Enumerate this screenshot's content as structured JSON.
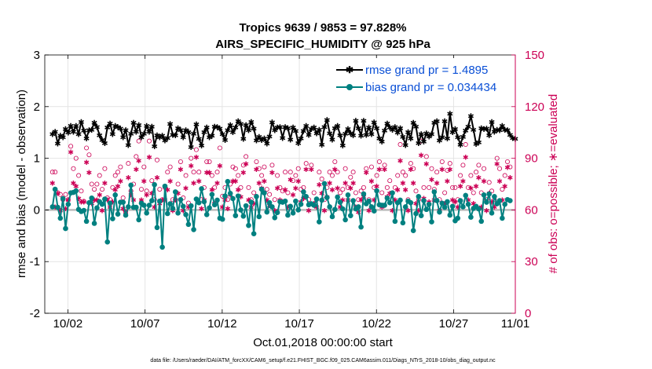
{
  "chart_data": {
    "type": "line",
    "title": "Tropics 9639 / 9853 = 97.828%",
    "subtitle": "AIRS_SPECIFIC_HUMIDITY @ 925 hPa",
    "xlabel": "Oct.01,2018 00:00:00 start",
    "ylabel": "rmse and bias (model - observation)",
    "y2label": "# of obs: o=possible; ∗=evaluated",
    "xlim": [
      0.5,
      31.0
    ],
    "ylim": [
      -2,
      3
    ],
    "y2lim": [
      0,
      150
    ],
    "x_ticks": [
      2,
      7,
      12,
      17,
      22,
      27,
      32
    ],
    "x_tick_labels": [
      "10/02",
      "10/07",
      "10/12",
      "10/17",
      "10/22",
      "10/27",
      "11/01"
    ],
    "y_ticks": [
      -2,
      -1,
      0,
      1,
      2,
      3
    ],
    "y_tick_labels": [
      "-2",
      "-1",
      "0",
      "1",
      "2",
      "3"
    ],
    "y2_ticks": [
      0,
      30,
      60,
      90,
      120,
      150
    ],
    "y2_tick_labels": [
      "0",
      "30",
      "60",
      "90",
      "120",
      "150"
    ],
    "legend_position": "top-right",
    "grid": true,
    "colors": {
      "rmse": "#000000",
      "bias": "#008080",
      "obs": "#cc0055",
      "zero_line": "#bbbbbb",
      "legend_text": "#0a4fd6"
    },
    "series": [
      {
        "name": "rmse grand pr = 1.4895",
        "values": [
          1.47,
          1.52,
          1.29,
          1.44,
          1.41,
          1.57,
          1.5,
          1.63,
          1.52,
          1.63,
          1.47,
          1.71,
          1.54,
          1.39,
          1.55,
          1.56,
          1.69,
          1.61,
          1.45,
          1.36,
          1.3,
          1.6,
          1.68,
          1.47,
          1.63,
          1.61,
          1.58,
          1.41,
          1.55,
          1.26,
          1.48,
          1.69,
          1.52,
          1.65,
          1.41,
          1.48,
          1.63,
          1.52,
          1.62,
          1.24,
          1.45,
          1.41,
          1.44,
          1.35,
          1.4,
          1.67,
          1.46,
          1.45,
          1.59,
          1.55,
          1.41,
          1.55,
          1.51,
          1.22,
          1.48,
          1.66,
          1.38,
          1.25,
          1.51,
          1.6,
          1.41,
          1.44,
          1.62,
          1.61,
          1.58,
          1.47,
          1.36,
          1.55,
          1.65,
          1.51,
          1.6,
          1.72,
          1.67,
          1.38,
          1.65,
          1.55,
          1.71,
          1.58,
          1.35,
          1.42,
          1.36,
          1.39,
          1.29,
          1.43,
          1.7,
          1.55,
          1.6,
          1.61,
          1.4,
          1.61,
          1.59,
          1.37,
          1.6,
          1.53,
          1.3,
          1.39,
          1.53,
          1.63,
          1.46,
          1.57,
          1.6,
          1.49,
          1.56,
          1.27,
          1.61,
          1.75,
          1.49,
          1.37,
          1.59,
          1.63,
          1.45,
          1.25,
          1.48,
          1.57,
          1.49,
          1.45,
          1.73,
          1.59,
          1.44,
          1.73,
          1.46,
          1.6,
          1.47,
          1.7,
          1.59,
          1.39,
          1.33,
          1.54,
          1.68,
          1.6,
          1.56,
          1.61,
          1.5,
          1.59,
          1.42,
          1.26,
          1.51,
          1.39,
          1.69,
          1.62,
          1.3,
          1.47,
          1.33,
          1.49,
          1.43,
          1.47,
          1.69,
          1.72,
          1.35,
          1.41,
          1.72,
          1.39,
          1.87,
          1.51,
          1.57,
          1.41,
          1.27,
          1.42,
          1.54,
          1.62,
          1.82,
          1.56,
          1.28,
          1.31,
          1.59,
          1.57,
          1.58,
          1.45,
          1.71,
          1.52,
          1.56,
          1.55,
          1.63,
          1.56,
          1.55,
          1.46,
          1.4,
          1.38
        ]
      },
      {
        "name": "bias grand pr = 0.034434",
        "values": [
          0.06,
          0.4,
          0.05,
          -0.16,
          0.22,
          -0.36,
          0.11,
          0.33,
          0.34,
          0.37,
          0.01,
          -0.03,
          -0.01,
          -0.22,
          0.14,
          0.23,
          -0.26,
          0.04,
          0.16,
          0.11,
          0.21,
          -0.62,
          0.13,
          -0.17,
          0.29,
          -0.08,
          0.15,
          0.15,
          -0.1,
          0.06,
          0.48,
          0.05,
          0.05,
          -0.19,
          0.13,
          0.09,
          -0.06,
          0.09,
          0.18,
          0.49,
          -0.34,
          0.17,
          -0.72,
          0.46,
          -0.07,
          0.12,
          0.03,
          0.35,
          -0.06,
          0.2,
          0.07,
          -0.09,
          -0.28,
          0.08,
          -0.38,
          0.21,
          0.14,
          0.41,
          0.16,
          -0.09,
          0.04,
          0.3,
          0.1,
          0.19,
          -0.16,
          -0.18,
          0.27,
          0.55,
          0.32,
          0.22,
          -0.11,
          0.27,
          0.0,
          -0.12,
          0.08,
          -0.3,
          0.15,
          -0.46,
          0.26,
          -0.13,
          0.4,
          0.33,
          -0.04,
          0.14,
          0.06,
          -0.15,
          -0.05,
          0.16,
          0.15,
          0.17,
          -0.1,
          0.07,
          -0.06,
          0.17,
          0.0,
          0.11,
          0.35,
          0.26,
          0.1,
          0.12,
          0.09,
          0.21,
          -0.23,
          0.19,
          0.51,
          0.24,
          0.06,
          -0.13,
          0.01,
          0.25,
          0.15,
          0.02,
          -0.19,
          0.29,
          -0.11,
          0.18,
          0.02,
          0.06,
          -0.33,
          0.31,
          0.12,
          0.17,
          0.06,
          -0.02,
          0.37,
          0.1,
          0.09,
          0.09,
          0.23,
          0.14,
          0.33,
          -0.22,
          0.14,
          0.19,
          -0.25,
          0.06,
          0.17,
          0.14,
          -0.4,
          -0.07,
          0.26,
          -0.11,
          0.18,
          0.01,
          0.11,
          -0.23,
          0.35,
          0.18,
          -0.04,
          0.13,
          0.05,
          0.16,
          -0.1,
          0.07,
          -0.21,
          -0.16,
          0.18,
          0.06,
          0.28,
          0.11,
          -0.14,
          0.03,
          0.07,
          0.02,
          -0.22,
          0.29,
          0.15,
          0.31,
          -0.06,
          0.26,
          0.12,
          0.18,
          -0.16,
          0.11,
          0.2,
          0.18
        ]
      },
      {
        "name": "# obs possible",
        "values": [
          82,
          82,
          70,
          69,
          66,
          69,
          66,
          97,
          84,
          90,
          80,
          71,
          65,
          96,
          92,
          75,
          72,
          75,
          80,
          72,
          84,
          67,
          66,
          73,
          80,
          82,
          85,
          67,
          59,
          87,
          71,
          75,
          91,
          100,
          72,
          85,
          71,
          100,
          77,
          66,
          89,
          72,
          66,
          73,
          82,
          85,
          66,
          66,
          75,
          88,
          67,
          80,
          64,
          90,
          82,
          95,
          82,
          66,
          73,
          88,
          88,
          80,
          73,
          82,
          96,
          68,
          73,
          66,
          75,
          85,
          84,
          80,
          73,
          86,
          91,
          73,
          66,
          70,
          88,
          84,
          80,
          85,
          72,
          69,
          86,
          66,
          80,
          73,
          71,
          82,
          70,
          82,
          77,
          80,
          84,
          72,
          73,
          87,
          66,
          86,
          70,
          66,
          82,
          78,
          66,
          73,
          82,
          80,
          88,
          82,
          70,
          72,
          84,
          73,
          79,
          82,
          70,
          66,
          71,
          73,
          84,
          66,
          85,
          73,
          80,
          88,
          70,
          86,
          73,
          77,
          66,
          73,
          80,
          98,
          82,
          80,
          66,
          87,
          84,
          71,
          66,
          100,
          73,
          91,
          73,
          84,
          72,
          82,
          66,
          88,
          70,
          83,
          87,
          73,
          73,
          66,
          80,
          86,
          98,
          73,
          80,
          70,
          82,
          86,
          70,
          84,
          66,
          76,
          71,
          66,
          90,
          84,
          72,
          80,
          88,
          85
        ]
      },
      {
        "name": "# obs evaluated",
        "values": [
          76,
          62,
          70,
          60,
          67,
          61,
          66,
          94,
          76,
          74,
          67,
          65,
          65,
          88,
          82,
          64,
          66,
          66,
          69,
          60,
          76,
          66,
          62,
          65,
          72,
          74,
          77,
          61,
          59,
          79,
          69,
          66,
          84,
          89,
          66,
          77,
          69,
          91,
          70,
          62,
          79,
          64,
          66,
          66,
          72,
          77,
          60,
          66,
          70,
          84,
          60,
          73,
          62,
          86,
          76,
          91,
          77,
          61,
          66,
          82,
          82,
          72,
          64,
          76,
          86,
          62,
          66,
          61,
          69,
          77,
          77,
          72,
          68,
          82,
          87,
          66,
          62,
          64,
          84,
          76,
          73,
          77,
          66,
          63,
          82,
          60,
          73,
          66,
          65,
          72,
          62,
          78,
          69,
          73,
          77,
          65,
          67,
          84,
          60,
          84,
          64,
          62,
          75,
          70,
          60,
          68,
          76,
          72,
          84,
          73,
          62,
          66,
          76,
          66,
          73,
          76,
          62,
          59,
          66,
          68,
          82,
          60,
          77,
          66,
          74,
          84,
          62,
          84,
          68,
          70,
          60,
          66,
          72,
          89,
          76,
          72,
          60,
          84,
          76,
          64,
          60,
          92,
          67,
          87,
          65,
          78,
          66,
          76,
          60,
          84,
          64,
          77,
          84,
          66,
          65,
          62,
          74,
          77,
          91,
          66,
          73,
          64,
          74,
          79,
          62,
          77,
          60,
          70,
          65,
          62,
          87,
          77,
          66,
          74,
          85,
          79
        ]
      }
    ],
    "footer": "data file: /Users/raeder/DAI/ATM_forcXX/CAM6_setup/f.e21.FHIST_BGC.f09_025.CAM6assim.011/Diags_NTrS_2018-10/obs_diag_output.nc"
  }
}
